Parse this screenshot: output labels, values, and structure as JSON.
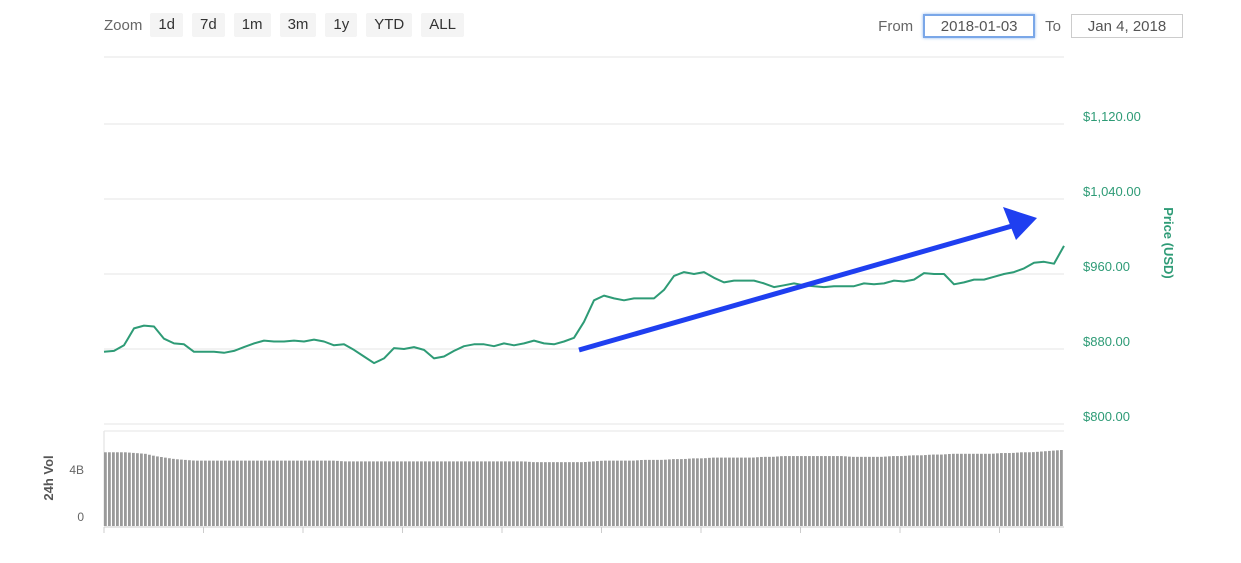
{
  "zoom": {
    "label": "Zoom",
    "buttons": [
      "1d",
      "7d",
      "1m",
      "3m",
      "1y",
      "YTD",
      "ALL"
    ]
  },
  "range": {
    "from_label": "From",
    "from_value": "2018-01-03",
    "to_label": "To",
    "to_value": "Jan 4, 2018"
  },
  "colors": {
    "price_line": "#2e9b76",
    "arrow": "#1f3ff0",
    "volume_bar": "#9a9a9a",
    "grid": "#e6e6e6"
  },
  "chart_data": [
    {
      "type": "line",
      "ylabel": "Price (USD)",
      "y_ticks": [
        "$1,120.00",
        "$1,040.00",
        "$960.00",
        "$880.00",
        "$800.00"
      ],
      "ylim": [
        800,
        1120
      ],
      "grid": true,
      "x": [
        0,
        1,
        2,
        3,
        4,
        5,
        6,
        7,
        8,
        9,
        10,
        11,
        12,
        13,
        14,
        15,
        16,
        17,
        18,
        19,
        20,
        21,
        22,
        23,
        24,
        25,
        26,
        27,
        28,
        29,
        30,
        31,
        32,
        33,
        34,
        35,
        36,
        37,
        38,
        39,
        40,
        41,
        42,
        43,
        44,
        45,
        46,
        47,
        48,
        49,
        50,
        51,
        52,
        53,
        54,
        55,
        56,
        57,
        58,
        59,
        60,
        61,
        62,
        63,
        64,
        65,
        66,
        67,
        68,
        69,
        70,
        71,
        72,
        73,
        74,
        75,
        76,
        77,
        78,
        79,
        80,
        81,
        82,
        83,
        84,
        85,
        86,
        87,
        88,
        89,
        90,
        91,
        92,
        93,
        94,
        95,
        96
      ],
      "series": [
        {
          "values": [
            877,
            878,
            884,
            902,
            905,
            904,
            891,
            886,
            885,
            877,
            877,
            877,
            876,
            878,
            882,
            886,
            889,
            888,
            888,
            889,
            888,
            890,
            888,
            884,
            885,
            879,
            872,
            865,
            870,
            881,
            880,
            882,
            879,
            870,
            872,
            878,
            883,
            885,
            885,
            883,
            886,
            884,
            886,
            889,
            886,
            885,
            888,
            892,
            909,
            932,
            937,
            934,
            932,
            934,
            934,
            934,
            943,
            958,
            962,
            960,
            962,
            956,
            951,
            953,
            953,
            953,
            950,
            946,
            948,
            950,
            948,
            947,
            946,
            947,
            947,
            947,
            950,
            949,
            950,
            953,
            952,
            954,
            961,
            960,
            960,
            949,
            951,
            954,
            954,
            957,
            960,
            962,
            966,
            972,
            973,
            971,
            990
          ]
        }
      ]
    },
    {
      "type": "bar",
      "ylabel": "24h Vol",
      "y_ticks": [
        "4B",
        "0"
      ],
      "values_relative": [
        0.97,
        0.97,
        0.97,
        0.96,
        0.95,
        0.92,
        0.9,
        0.88,
        0.87,
        0.86,
        0.86,
        0.86,
        0.86,
        0.86,
        0.86,
        0.86,
        0.86,
        0.86,
        0.86,
        0.86,
        0.86,
        0.86,
        0.86,
        0.86,
        0.85,
        0.85,
        0.85,
        0.85,
        0.85,
        0.85,
        0.85,
        0.85,
        0.85,
        0.85,
        0.85,
        0.85,
        0.85,
        0.85,
        0.85,
        0.85,
        0.85,
        0.85,
        0.85,
        0.84,
        0.84,
        0.84,
        0.84,
        0.84,
        0.84,
        0.85,
        0.86,
        0.86,
        0.86,
        0.86,
        0.87,
        0.87,
        0.87,
        0.88,
        0.88,
        0.89,
        0.89,
        0.9,
        0.9,
        0.9,
        0.9,
        0.9,
        0.91,
        0.91,
        0.92,
        0.92,
        0.92,
        0.92,
        0.92,
        0.92,
        0.92,
        0.91,
        0.91,
        0.91,
        0.91,
        0.92,
        0.92,
        0.93,
        0.93,
        0.94,
        0.94,
        0.95,
        0.95,
        0.95,
        0.95,
        0.95,
        0.96,
        0.96,
        0.97,
        0.97,
        0.98,
        0.99,
        1.0
      ]
    }
  ]
}
